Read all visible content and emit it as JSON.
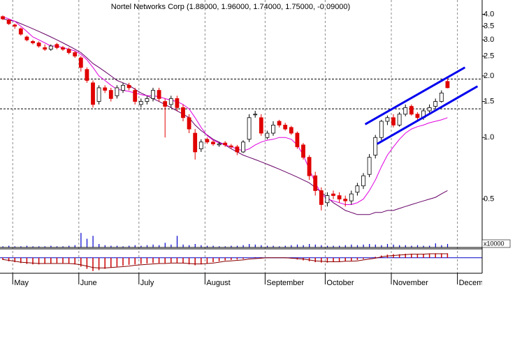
{
  "chart_data": {
    "type": "candlestick",
    "title": "Nortel Networks Corp (1.88000, 1.96000, 1.74000, 1.75000, -0.09000)",
    "categories": [
      null,
      null,
      "May",
      null,
      null,
      null,
      null,
      null,
      null,
      null,
      null,
      null,
      null,
      "June",
      null,
      null,
      null,
      null,
      null,
      null,
      null,
      null,
      null,
      "July",
      null,
      null,
      null,
      null,
      null,
      null,
      null,
      null,
      null,
      null,
      "August",
      null,
      null,
      null,
      null,
      null,
      null,
      null,
      null,
      null,
      "September",
      null,
      null,
      null,
      null,
      null,
      null,
      null,
      null,
      null,
      "October",
      null,
      null,
      null,
      null,
      null,
      null,
      null,
      null,
      null,
      null,
      "November",
      null,
      null,
      null,
      null,
      null,
      null,
      null,
      null,
      null,
      null,
      "December"
    ],
    "open": [
      3.9,
      3.75,
      3.55,
      3.4,
      3.1,
      2.95,
      2.9,
      2.75,
      2.7,
      2.85,
      2.75,
      2.7,
      2.6,
      2.45,
      2.15,
      1.85,
      1.5,
      1.75,
      1.7,
      1.6,
      1.7,
      1.8,
      1.7,
      1.45,
      1.5,
      1.55,
      1.7,
      1.5,
      1.45,
      1.55,
      1.4,
      1.25,
      1.05,
      0.88,
      0.98,
      0.95,
      0.92,
      0.94,
      0.91,
      0.9,
      0.85,
      0.98,
      1.3,
      1.25,
      1.0,
      1.05,
      1.2,
      1.15,
      1.12,
      1.05,
      0.92,
      0.8,
      0.65,
      0.55,
      0.48,
      0.53,
      0.52,
      0.5,
      0.49,
      0.54,
      0.58,
      0.66,
      0.82,
      1.0,
      1.2,
      1.25,
      1.15,
      1.3,
      1.42,
      1.3,
      1.25,
      1.35,
      1.42,
      1.5,
      1.88,
      null,
      null
    ],
    "high": [
      3.95,
      3.8,
      3.6,
      3.45,
      3.15,
      3.0,
      2.95,
      2.85,
      2.85,
      2.9,
      2.8,
      2.75,
      2.65,
      2.5,
      2.2,
      1.9,
      1.8,
      1.8,
      1.75,
      1.8,
      1.85,
      1.85,
      1.75,
      1.55,
      1.6,
      1.75,
      1.75,
      1.55,
      1.6,
      1.6,
      1.45,
      1.3,
      1.1,
      0.98,
      1.0,
      0.97,
      0.95,
      0.96,
      0.93,
      0.92,
      0.97,
      1.3,
      1.35,
      1.3,
      1.08,
      1.2,
      1.22,
      1.18,
      1.14,
      1.07,
      0.94,
      0.82,
      0.68,
      0.57,
      0.54,
      0.55,
      0.54,
      0.52,
      0.55,
      0.6,
      0.67,
      0.83,
      1.03,
      1.22,
      1.28,
      1.3,
      1.33,
      1.45,
      1.45,
      1.33,
      1.38,
      1.45,
      1.55,
      1.7,
      1.96,
      null,
      null
    ],
    "low": [
      3.75,
      3.55,
      3.4,
      3.15,
      2.95,
      2.85,
      2.75,
      2.65,
      2.65,
      2.7,
      2.65,
      2.55,
      2.45,
      2.1,
      1.85,
      1.4,
      1.45,
      1.65,
      1.5,
      1.55,
      1.65,
      1.7,
      1.45,
      1.4,
      1.45,
      1.5,
      1.5,
      1.0,
      1.4,
      1.35,
      1.2,
      1.05,
      0.78,
      0.85,
      0.93,
      0.91,
      0.9,
      0.9,
      0.88,
      0.82,
      0.84,
      0.95,
      1.25,
      1.02,
      0.98,
      1.02,
      1.12,
      1.08,
      1.03,
      0.88,
      0.78,
      0.62,
      0.52,
      0.44,
      0.46,
      0.5,
      0.48,
      0.46,
      0.47,
      0.52,
      0.56,
      0.64,
      0.79,
      0.97,
      1.15,
      1.12,
      1.13,
      1.27,
      1.28,
      1.2,
      1.22,
      1.32,
      1.38,
      1.48,
      1.74,
      null,
      null
    ],
    "close": [
      3.8,
      3.6,
      3.5,
      3.2,
      3.0,
      2.9,
      2.8,
      2.7,
      2.8,
      2.75,
      2.7,
      2.6,
      2.5,
      2.2,
      1.9,
      1.45,
      1.75,
      1.7,
      1.55,
      1.75,
      1.8,
      1.75,
      1.5,
      1.5,
      1.55,
      1.7,
      1.55,
      1.42,
      1.55,
      1.4,
      1.25,
      1.1,
      0.85,
      0.95,
      0.95,
      0.93,
      0.93,
      0.92,
      0.9,
      0.85,
      0.95,
      1.25,
      1.3,
      1.05,
      1.05,
      1.15,
      1.15,
      1.1,
      1.05,
      0.9,
      0.8,
      0.65,
      0.55,
      0.47,
      0.52,
      0.52,
      0.5,
      0.49,
      0.53,
      0.58,
      0.65,
      0.8,
      1.0,
      1.2,
      1.25,
      1.15,
      1.3,
      1.4,
      1.3,
      1.25,
      1.35,
      1.4,
      1.5,
      1.65,
      1.75,
      null,
      null
    ],
    "up_color": "#ffffff",
    "down_color": "#e00000",
    "moving_averages": [
      {
        "color": "#660066",
        "values": [
          3.8,
          3.75,
          3.7,
          3.6,
          3.5,
          3.4,
          3.3,
          3.2,
          3.1,
          3.0,
          2.9,
          2.8,
          2.7,
          2.6,
          2.45,
          2.3,
          2.2,
          2.1,
          2.0,
          1.9,
          1.85,
          1.8,
          1.72,
          1.65,
          1.6,
          1.55,
          1.5,
          1.45,
          1.4,
          1.35,
          1.3,
          1.25,
          1.15,
          1.08,
          1.03,
          0.98,
          0.95,
          0.92,
          0.88,
          0.85,
          0.82,
          0.8,
          0.78,
          0.76,
          0.74,
          0.72,
          0.7,
          0.68,
          0.66,
          0.64,
          0.62,
          0.6,
          0.57,
          0.54,
          0.51,
          0.48,
          0.46,
          0.44,
          0.43,
          0.42,
          0.42,
          0.42,
          0.43,
          0.43,
          0.44,
          0.44,
          0.45,
          0.46,
          0.47,
          0.48,
          0.49,
          0.5,
          0.51,
          0.53,
          0.55,
          null,
          null
        ]
      },
      {
        "color": "#e000e0",
        "values": [
          3.9,
          3.8,
          3.7,
          3.5,
          3.3,
          3.1,
          3.0,
          2.9,
          2.8,
          2.8,
          2.75,
          2.7,
          2.65,
          2.55,
          2.4,
          2.2,
          2.0,
          1.9,
          1.8,
          1.72,
          1.7,
          1.68,
          1.65,
          1.62,
          1.6,
          1.6,
          1.58,
          1.55,
          1.52,
          1.5,
          1.45,
          1.38,
          1.25,
          1.12,
          1.02,
          0.97,
          0.94,
          0.92,
          0.9,
          0.88,
          0.86,
          0.88,
          0.92,
          0.95,
          0.97,
          0.98,
          1.0,
          1.0,
          0.98,
          0.92,
          0.82,
          0.7,
          0.6,
          0.53,
          0.5,
          0.49,
          0.48,
          0.47,
          0.47,
          0.48,
          0.5,
          0.55,
          0.62,
          0.72,
          0.82,
          0.9,
          0.98,
          1.05,
          1.1,
          1.13,
          1.15,
          1.18,
          1.2,
          1.22,
          1.25,
          null,
          null
        ]
      }
    ],
    "trend_lines": [
      {
        "color": "#0000ee",
        "x": [
          60.3,
          76.9
        ],
        "y": [
          1.16,
          2.2
        ]
      },
      {
        "color": "#0000ee",
        "x": [
          62.3,
          79
        ],
        "y": [
          0.93,
          1.78
        ]
      }
    ],
    "reference_lines": [
      1.93,
      1.38
    ],
    "ylim": [
      0.29,
      4.7
    ],
    "log_scale": true,
    "yticks": [
      0.5,
      {
        "value": 1,
        "label": "1.0"
      },
      1.5,
      {
        "value": 2,
        "label": "2.0"
      },
      2.5,
      {
        "value": 3,
        "label": "3.0"
      },
      3.5,
      {
        "value": 4,
        "label": "4.0"
      }
    ],
    "volume": {
      "label": "x10000",
      "color": "#0000cc",
      "ylim": [
        0,
        30
      ],
      "values": [
        2,
        3,
        2,
        2,
        3,
        2,
        2,
        2,
        3,
        2,
        2,
        3,
        4,
        25,
        15,
        20,
        6,
        4,
        3,
        3,
        2,
        3,
        4,
        3,
        4,
        5,
        4,
        8,
        5,
        20,
        5,
        4,
        6,
        4,
        3,
        3,
        2,
        2,
        3,
        3,
        4,
        6,
        5,
        4,
        3,
        3,
        2,
        3,
        4,
        5,
        4,
        6,
        5,
        4,
        3,
        3,
        3,
        4,
        5,
        4,
        5,
        6,
        5,
        4,
        6,
        5,
        4,
        4,
        3,
        4,
        3,
        3,
        7,
        4,
        6,
        null,
        null
      ]
    },
    "macd": {
      "color": "#cc0000",
      "ylim": [
        -0.35,
        0.2
      ],
      "yticks": [
        0
      ],
      "histogram": [
        -0.05,
        -0.08,
        -0.1,
        -0.12,
        -0.14,
        -0.15,
        -0.15,
        -0.14,
        -0.13,
        -0.12,
        -0.12,
        -0.13,
        -0.15,
        -0.2,
        -0.25,
        -0.3,
        -0.28,
        -0.25,
        -0.22,
        -0.2,
        -0.18,
        -0.16,
        -0.15,
        -0.14,
        -0.13,
        -0.12,
        -0.12,
        -0.12,
        -0.11,
        -0.12,
        -0.13,
        -0.15,
        -0.17,
        -0.15,
        -0.13,
        -0.1,
        -0.08,
        -0.06,
        -0.05,
        -0.04,
        -0.03,
        -0.01,
        0.01,
        0.01,
        0.0,
        0.0,
        0.0,
        -0.01,
        -0.02,
        -0.04,
        -0.06,
        -0.08,
        -0.1,
        -0.11,
        -0.11,
        -0.1,
        -0.09,
        -0.08,
        -0.07,
        -0.05,
        -0.03,
        -0.01,
        0.02,
        0.05,
        0.07,
        0.08,
        0.08,
        0.09,
        0.09,
        0.09,
        0.09,
        0.09,
        0.1,
        0.1,
        0.1,
        null,
        null
      ],
      "line_color": "#880000",
      "line": [
        -0.04,
        -0.06,
        -0.08,
        -0.1,
        -0.11,
        -0.12,
        -0.13,
        -0.13,
        -0.13,
        -0.13,
        -0.13,
        -0.13,
        -0.14,
        -0.16,
        -0.19,
        -0.22,
        -0.23,
        -0.23,
        -0.22,
        -0.21,
        -0.2,
        -0.19,
        -0.17,
        -0.16,
        -0.15,
        -0.14,
        -0.13,
        -0.13,
        -0.12,
        -0.12,
        -0.12,
        -0.13,
        -0.14,
        -0.14,
        -0.13,
        -0.12,
        -0.1,
        -0.08,
        -0.07,
        -0.06,
        -0.05,
        -0.03,
        -0.02,
        -0.01,
        0.0,
        0.0,
        0.0,
        0.0,
        -0.01,
        -0.02,
        -0.03,
        -0.05,
        -0.07,
        -0.08,
        -0.09,
        -0.09,
        -0.09,
        -0.08,
        -0.08,
        -0.07,
        -0.05,
        -0.03,
        -0.01,
        0.02,
        0.04,
        0.05,
        0.06,
        0.07,
        0.08,
        0.08,
        0.08,
        0.09,
        0.09,
        0.09,
        0.09,
        null,
        null
      ]
    }
  }
}
